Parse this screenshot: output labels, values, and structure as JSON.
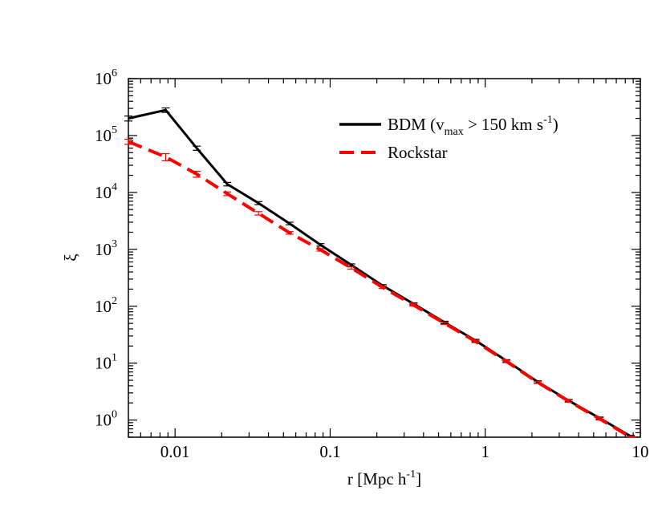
{
  "chart_data": {
    "type": "line",
    "x_scale": "log",
    "y_scale": "log",
    "xlim": [
      0.005,
      10
    ],
    "ylim": [
      0.5,
      1000000
    ],
    "xlabel": "r [Mpc h",
    "xlabel_sup": "-1",
    "xlabel_suffix": "]",
    "ylabel": "ξ",
    "legend_position": "top-right",
    "grid": false,
    "x_ticks": [
      {
        "value": 0.01,
        "label": "0.01"
      },
      {
        "value": 0.1,
        "label": "0.1"
      },
      {
        "value": 1,
        "label": "1"
      },
      {
        "value": 10,
        "label": "10"
      }
    ],
    "y_ticks": [
      {
        "value": 1,
        "base": "10",
        "exp": "0"
      },
      {
        "value": 10,
        "base": "10",
        "exp": "1"
      },
      {
        "value": 100,
        "base": "10",
        "exp": "2"
      },
      {
        "value": 1000,
        "base": "10",
        "exp": "3"
      },
      {
        "value": 10000,
        "base": "10",
        "exp": "4"
      },
      {
        "value": 100000,
        "base": "10",
        "exp": "5"
      },
      {
        "value": 1000000,
        "base": "10",
        "exp": "6"
      }
    ],
    "series": [
      {
        "name": "BDM (v",
        "name_sub": "max",
        "name_mid": " > 150 km s",
        "name_sup": "-1",
        "name_end": ")",
        "color": "#000000",
        "dash": "solid",
        "points": [
          {
            "x": 0.005,
            "y": 200000,
            "err": 20000
          },
          {
            "x": 0.0087,
            "y": 280000,
            "err": 25000
          },
          {
            "x": 0.0138,
            "y": 60000,
            "err": 5000
          },
          {
            "x": 0.0217,
            "y": 14000,
            "err": 1000
          },
          {
            "x": 0.0345,
            "y": 6500,
            "err": 400
          },
          {
            "x": 0.0547,
            "y": 2850,
            "err": 150
          },
          {
            "x": 0.0866,
            "y": 1200,
            "err": 60
          },
          {
            "x": 0.137,
            "y": 530,
            "err": 25
          },
          {
            "x": 0.218,
            "y": 230,
            "err": 10
          },
          {
            "x": 0.345,
            "y": 110,
            "err": 5
          },
          {
            "x": 0.547,
            "y": 52,
            "err": 2.5
          },
          {
            "x": 0.866,
            "y": 25,
            "err": 1.2
          },
          {
            "x": 1.37,
            "y": 11,
            "err": 0.5
          },
          {
            "x": 2.18,
            "y": 4.7,
            "err": 0.2
          },
          {
            "x": 3.45,
            "y": 2.2,
            "err": 0.1
          },
          {
            "x": 5.47,
            "y": 1.08,
            "err": 0.05
          },
          {
            "x": 8.66,
            "y": 0.52,
            "err": 0.02
          }
        ]
      },
      {
        "name": "Rockstar",
        "color": "#ff0000",
        "dash": "dashed",
        "points": [
          {
            "x": 0.005,
            "y": 78000,
            "err": 8000
          },
          {
            "x": 0.0087,
            "y": 42000,
            "err": 6000
          },
          {
            "x": 0.0138,
            "y": 21000,
            "err": 2500
          },
          {
            "x": 0.0217,
            "y": 9500,
            "err": 700
          },
          {
            "x": 0.0345,
            "y": 4300,
            "err": 300
          },
          {
            "x": 0.0547,
            "y": 1950,
            "err": 100
          },
          {
            "x": 0.0866,
            "y": 980,
            "err": 50
          },
          {
            "x": 0.137,
            "y": 470,
            "err": 22
          },
          {
            "x": 0.218,
            "y": 215,
            "err": 10
          },
          {
            "x": 0.345,
            "y": 105,
            "err": 5
          },
          {
            "x": 0.547,
            "y": 50,
            "err": 2.3
          },
          {
            "x": 0.866,
            "y": 24,
            "err": 1.1
          },
          {
            "x": 1.37,
            "y": 10.7,
            "err": 0.5
          },
          {
            "x": 2.18,
            "y": 4.6,
            "err": 0.2
          },
          {
            "x": 3.45,
            "y": 2.15,
            "err": 0.1
          },
          {
            "x": 5.47,
            "y": 1.05,
            "err": 0.05
          },
          {
            "x": 8.66,
            "y": 0.5,
            "err": 0.02
          }
        ]
      }
    ]
  }
}
